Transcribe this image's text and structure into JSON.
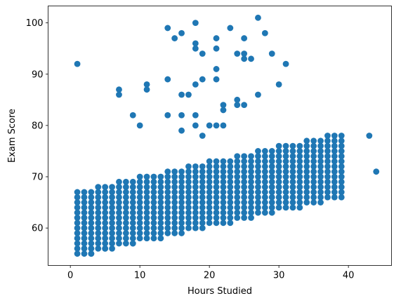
{
  "chart_data": {
    "type": "scatter",
    "title": "",
    "xlabel": "Hours Studied",
    "ylabel": "Exam Score",
    "xlim": [
      -3.2,
      46.2
    ],
    "ylim": [
      52.7,
      103.3
    ],
    "xticks": [
      0,
      10,
      20,
      30,
      40
    ],
    "yticks": [
      60,
      70,
      80,
      90,
      100
    ],
    "grid": false,
    "marker_color": "#1f77b4",
    "cluster": {
      "description": "dense band of points generated programmatically",
      "x_range": [
        1,
        39
      ],
      "trend_intercept": 57.5,
      "trend_slope": 0.3,
      "spread_below": 3,
      "spread_above": 9
    },
    "outliers": [
      [
        1,
        92
      ],
      [
        9,
        82
      ],
      [
        10,
        80
      ],
      [
        11,
        88
      ],
      [
        11,
        87
      ],
      [
        7,
        87
      ],
      [
        7,
        86
      ],
      [
        14,
        99
      ],
      [
        15,
        97
      ],
      [
        16,
        98
      ],
      [
        14,
        89
      ],
      [
        14,
        82
      ],
      [
        16,
        86
      ],
      [
        16,
        82
      ],
      [
        16,
        79
      ],
      [
        17,
        86
      ],
      [
        18,
        100
      ],
      [
        18,
        96
      ],
      [
        18,
        95
      ],
      [
        18,
        88
      ],
      [
        18,
        82
      ],
      [
        18,
        80
      ],
      [
        19,
        94
      ],
      [
        19,
        89
      ],
      [
        19,
        78
      ],
      [
        20,
        80
      ],
      [
        21,
        97
      ],
      [
        21,
        95
      ],
      [
        21,
        91
      ],
      [
        21,
        89
      ],
      [
        21,
        80
      ],
      [
        22,
        84
      ],
      [
        22,
        83
      ],
      [
        22,
        80
      ],
      [
        23,
        99
      ],
      [
        24,
        94
      ],
      [
        24,
        85
      ],
      [
        24,
        84
      ],
      [
        25,
        97
      ],
      [
        25,
        94
      ],
      [
        25,
        93
      ],
      [
        25,
        84
      ],
      [
        26,
        93
      ],
      [
        27,
        101
      ],
      [
        27,
        86
      ],
      [
        28,
        98
      ],
      [
        29,
        94
      ],
      [
        30,
        88
      ],
      [
        31,
        92
      ],
      [
        3,
        56
      ],
      [
        3,
        55
      ],
      [
        5,
        56
      ],
      [
        9,
        57
      ],
      [
        43,
        78
      ],
      [
        44,
        71
      ]
    ]
  }
}
